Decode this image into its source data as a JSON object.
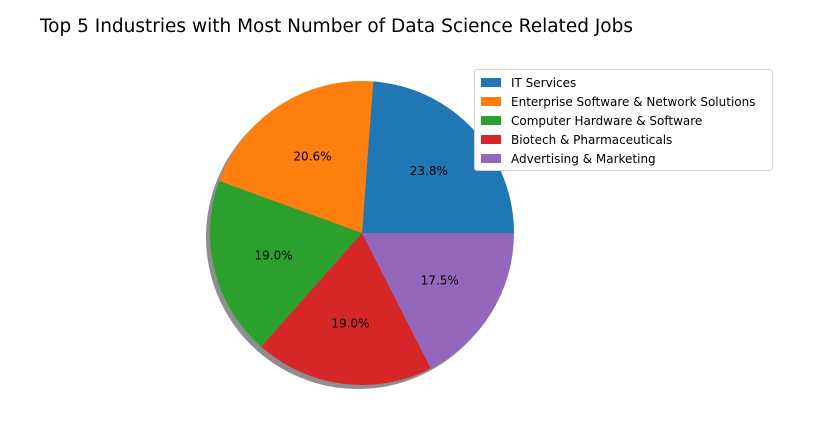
{
  "chart_data": {
    "type": "pie",
    "title": "Top 5 Industries with Most Number of Data Science Related Jobs",
    "categories": [
      "IT Services",
      "Enterprise Software & Network Solutions",
      "Computer Hardware & Software",
      "Biotech & Pharmaceuticals",
      "Advertising & Marketing"
    ],
    "values": [
      23.8,
      20.6,
      19.0,
      19.0,
      17.5
    ],
    "labels": [
      "23.8%",
      "20.6%",
      "19.0%",
      "19.0%",
      "17.5%"
    ],
    "colors": [
      "#1f77b4",
      "#ff7f0e",
      "#2ca02c",
      "#d62728",
      "#9467bd"
    ],
    "start_angle": 0,
    "direction": "counterclockwise",
    "shadow": true,
    "legend_position": "top-right"
  }
}
